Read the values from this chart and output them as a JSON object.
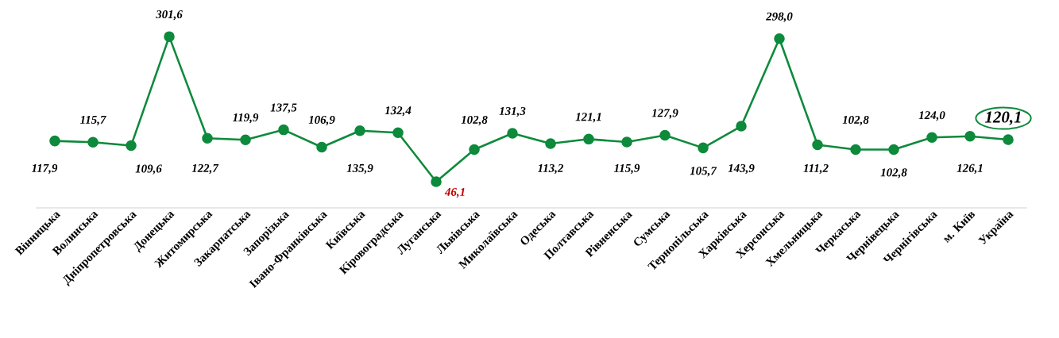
{
  "chart_data": {
    "type": "line",
    "color": "#0d8a3b",
    "marker": "circle",
    "categories": [
      "Вінницька",
      "Волинська",
      "Дніпропетровська",
      "Донецька",
      "Житомирська",
      "Закарпатська",
      "Запорізька",
      "Івано-Франківська",
      "Київська",
      "Кіровоградська",
      "Луганська",
      "Львівська",
      "Миколаївська",
      "Одеська",
      "Полтавська",
      "Рівненська",
      "Сумська",
      "Тернопільська",
      "Харківська",
      "Херсонська",
      "Хмельницька",
      "Черкаська",
      "Чернівецька",
      "Чернігівська",
      "м. Київ",
      "Україна"
    ],
    "values": [
      117.9,
      115.7,
      109.6,
      301.6,
      122.7,
      119.9,
      137.5,
      106.9,
      135.9,
      132.4,
      46.1,
      102.8,
      131.3,
      113.2,
      121.1,
      115.9,
      127.9,
      105.7,
      143.9,
      298.0,
      111.2,
      102.8,
      102.8,
      124.0,
      126.1,
      120.1
    ],
    "value_labels": [
      "117,9",
      "115,7",
      "109,6",
      "301,6",
      "122,7",
      "119,9",
      "137,5",
      "106,9",
      "135,9",
      "132,4",
      "46,1",
      "102,8",
      "131,3",
      "113,2",
      "121,1",
      "115,9",
      "127,9",
      "105,7",
      "143,9",
      "298,0",
      "111,2",
      "102,8",
      "102,8",
      "124,0",
      "126,1",
      "120,1"
    ]
  }
}
